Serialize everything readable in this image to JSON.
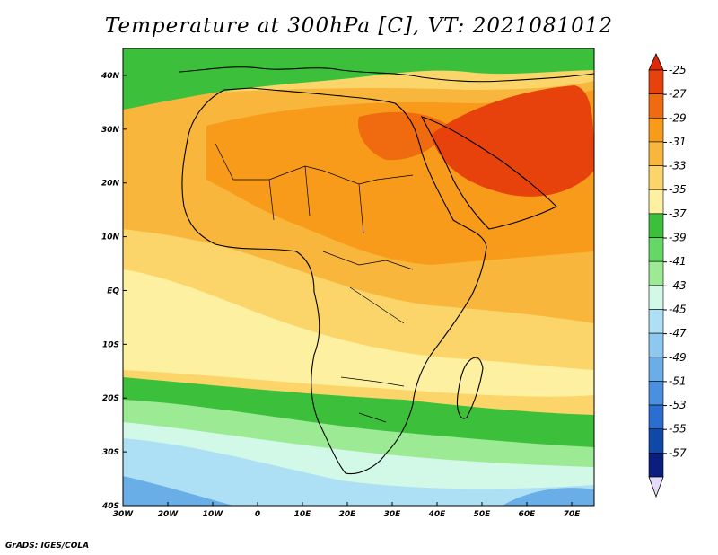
{
  "title": "Temperature at 300hPa [C], VT: 2021081012",
  "credit": "GrADS: IGES/COLA",
  "lon_labels": [
    "30W",
    "20W",
    "10W",
    "0",
    "10E",
    "20E",
    "30E",
    "40E",
    "50E",
    "60E",
    "70E"
  ],
  "lat_labels": [
    "40N",
    "30N",
    "20N",
    "10N",
    "EQ",
    "10S",
    "20S",
    "30S",
    "40S"
  ],
  "colorbar": {
    "labels": [
      "-25",
      "-27",
      "-29",
      "-31",
      "-33",
      "-35",
      "-37",
      "-39",
      "-41",
      "-43",
      "-45",
      "-47",
      "-49",
      "-51",
      "-53",
      "-55",
      "-57"
    ],
    "colors": [
      "#e8420c",
      "#f06a10",
      "#f89a1a",
      "#f9b63c",
      "#fbd56a",
      "#fdf0a0",
      "#3cc03c",
      "#64d864",
      "#9ceb94",
      "#d2f8e8",
      "#aee0f5",
      "#8cc8f0",
      "#6aaee8",
      "#4a90e0",
      "#2a6ed0",
      "#1048a8",
      "#0a1e80"
    ],
    "top_arrow_color": "#e02808",
    "bottom_arrow_color": "#e4dcf8"
  },
  "field_colors": {
    "north_land": "#3cc03c",
    "sahara_hot": "#f06a10",
    "arabia_hot": "#e8420c",
    "warm": "#f89a1a",
    "mid": "#f9b63c",
    "mild": "#fbd56a",
    "cool": "#fdf0a0",
    "south_green": "#3cc03c",
    "south_light": "#9ceb94",
    "south_pale": "#d2f8e8",
    "south_blue": "#aee0f5",
    "south_deep": "#6aaee8"
  }
}
